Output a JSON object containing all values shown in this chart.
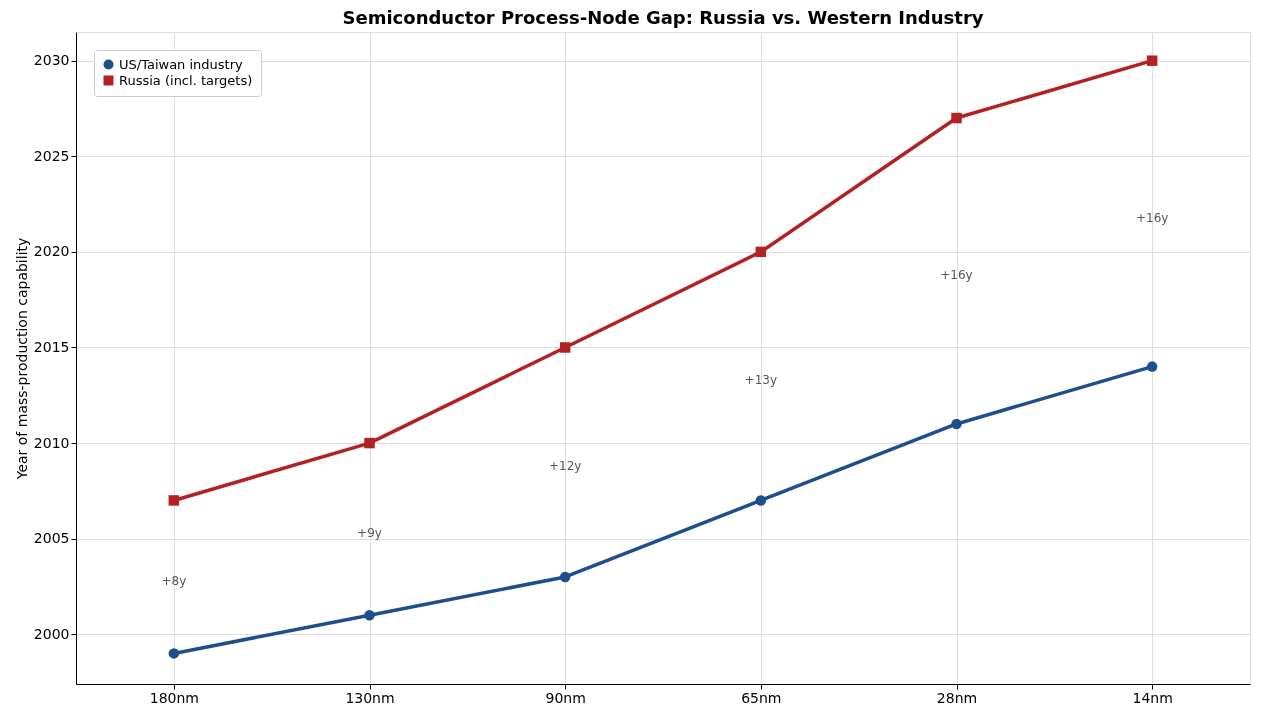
{
  "chart_data": {
    "type": "line",
    "title": "Semiconductor Process-Node Gap: Russia vs. Western Industry",
    "ylabel": "Year of mass-production capability",
    "categories": [
      "180nm",
      "130nm",
      "90nm",
      "65nm",
      "28nm",
      "14nm"
    ],
    "series": [
      {
        "name": "US/Taiwan industry",
        "color": "#1f4e8c",
        "marker": "circle",
        "values": [
          1999,
          2001,
          2003,
          2007,
          2011,
          2014
        ]
      },
      {
        "name": "Russia (incl. targets)",
        "color": "#b22222",
        "marker": "square",
        "values": [
          2007,
          2010,
          2015,
          2020,
          2027,
          2030
        ]
      }
    ],
    "ylim": [
      1997.4,
      2031.5
    ],
    "yticks": [
      2000,
      2005,
      2010,
      2015,
      2020,
      2025,
      2030
    ],
    "annotations": [
      "+8y",
      "+9y",
      "+12y",
      "+13y",
      "+16y",
      "+16y"
    ],
    "grid": true,
    "legend": "top left",
    "line_style": "solid"
  }
}
